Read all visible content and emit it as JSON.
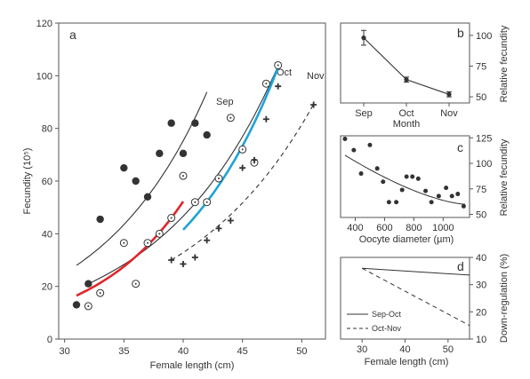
{
  "chart_data": [
    {
      "panel": "a",
      "type": "scatter",
      "xlabel": "Female length (cm)",
      "ylabel": "Fecundity (10⁵)",
      "xlim": [
        29.5,
        52
      ],
      "ylim": [
        0,
        120
      ],
      "xticks": [
        30,
        35,
        40,
        45,
        50
      ],
      "yticks": [
        0,
        20,
        40,
        60,
        80,
        100,
        120
      ],
      "curve_labels": [
        "Sep",
        "Oct",
        "Nov"
      ],
      "series": [
        {
          "name": "Sep",
          "marker": "filled-circle",
          "points": [
            [
              31,
              13
            ],
            [
              32,
              21
            ],
            [
              33,
              45.5
            ],
            [
              35,
              65
            ],
            [
              36,
              60
            ],
            [
              37,
              54
            ],
            [
              38,
              70.5
            ],
            [
              39,
              82
            ],
            [
              40,
              70.5
            ],
            [
              41,
              82
            ],
            [
              42,
              77.5
            ]
          ]
        },
        {
          "name": "Oct",
          "marker": "open-circle",
          "points": [
            [
              32,
              12.5
            ],
            [
              33,
              17.5
            ],
            [
              35,
              36.5
            ],
            [
              36,
              21
            ],
            [
              37,
              36.5
            ],
            [
              38,
              40
            ],
            [
              39,
              46
            ],
            [
              40,
              62
            ],
            [
              41,
              52
            ],
            [
              42,
              52
            ],
            [
              43,
              61
            ],
            [
              44,
              84
            ],
            [
              45,
              72
            ],
            [
              46,
              67
            ],
            [
              47,
              97
            ],
            [
              48,
              104
            ]
          ]
        },
        {
          "name": "Nov",
          "marker": "plus",
          "points": [
            [
              39,
              30
            ],
            [
              40,
              28.5
            ],
            [
              41,
              31
            ],
            [
              42,
              37.5
            ],
            [
              43,
              42
            ],
            [
              44,
              45
            ],
            [
              45,
              65
            ],
            [
              46,
              68
            ],
            [
              47,
              83.5
            ],
            [
              48,
              96
            ],
            [
              51,
              89
            ]
          ]
        }
      ],
      "fits": [
        {
          "name": "Sep",
          "style": "solid-dark",
          "x": [
            31,
            42
          ],
          "a": 28,
          "b": 0.1099
        },
        {
          "name": "Oct",
          "style": "solid-dark",
          "x": [
            32,
            48
          ],
          "a": 21,
          "b": 0.0998
        },
        {
          "name": "Nov",
          "style": "dashed-dark",
          "x": [
            39,
            51
          ],
          "a": 30,
          "b": 0.0908
        },
        {
          "name": "",
          "style": "solid-red",
          "x": [
            31,
            40
          ],
          "a": 16.5,
          "b": 0.1281
        },
        {
          "name": "",
          "style": "solid-blue",
          "x": [
            40,
            48
          ],
          "a": 41.5,
          "b": 0.1138
        }
      ]
    },
    {
      "panel": "b",
      "type": "line",
      "xlabel": "Month",
      "ylabel": "Relative fecundity",
      "categories": [
        "Sep",
        "Oct",
        "Nov"
      ],
      "values": [
        98,
        64,
        52
      ],
      "errors": [
        6,
        2,
        2
      ],
      "ylim": [
        45,
        110
      ],
      "yticks": [
        50,
        75,
        100
      ]
    },
    {
      "panel": "c",
      "type": "scatter",
      "xlabel": "Oocyte diameter (µm)",
      "ylabel": "Relative fecundity",
      "xlim": [
        300,
        1180
      ],
      "ylim": [
        47,
        127
      ],
      "xticks": [
        400,
        600,
        800,
        1000
      ],
      "yticks": [
        50,
        75,
        100,
        125
      ],
      "points": [
        [
          330,
          124
        ],
        [
          390,
          113
        ],
        [
          440,
          90
        ],
        [
          500,
          118
        ],
        [
          550,
          95
        ],
        [
          590,
          82
        ],
        [
          630,
          62
        ],
        [
          680,
          62
        ],
        [
          720,
          74
        ],
        [
          750,
          87
        ],
        [
          790,
          87
        ],
        [
          830,
          85
        ],
        [
          880,
          73
        ],
        [
          920,
          62
        ],
        [
          970,
          68
        ],
        [
          1020,
          76
        ],
        [
          1060,
          68
        ],
        [
          1100,
          70
        ],
        [
          1140,
          58
        ]
      ],
      "fit": {
        "x": [
          330,
          1150
        ],
        "y0": 108,
        "y1": 60
      }
    },
    {
      "panel": "d",
      "type": "line",
      "xlabel": "Female length (cm)",
      "ylabel": "Down-regulation (%)",
      "xlim": [
        25,
        55
      ],
      "ylim": [
        10,
        40
      ],
      "xticks": [
        30,
        40,
        50
      ],
      "yticks": [
        10,
        20,
        30,
        40
      ],
      "series": [
        {
          "name": "Sep-Oct",
          "style": "solid",
          "x": [
            30,
            55
          ],
          "y": [
            36,
            33.5
          ]
        },
        {
          "name": "Oct-Nov",
          "style": "dashed",
          "x": [
            30,
            55
          ],
          "y": [
            36,
            15
          ]
        }
      ]
    }
  ],
  "labels": {
    "panel_a": "a",
    "panel_b": "b",
    "panel_c": "c",
    "panel_d": "d",
    "sep": "Sep",
    "oct": "Oct",
    "nov": "Nov",
    "a_xlabel": "Female length (cm)",
    "a_ylabel": "Fecundity (10⁵)",
    "b_xlabel": "Month",
    "b_ylabel": "Relative fecundity",
    "c_xlabel": "Oocyte diameter (µm)",
    "c_ylabel": "Relative fecundity",
    "d_xlabel": "Female length (cm)",
    "d_ylabel": "Down-regulation (%)",
    "legend_sep_oct": "Sep-Oct",
    "legend_oct_nov": "Oct-Nov"
  },
  "colors": {
    "dark": "#333333",
    "red": "#e0262b",
    "blue": "#1ea3d6",
    "marker": "#333333"
  }
}
